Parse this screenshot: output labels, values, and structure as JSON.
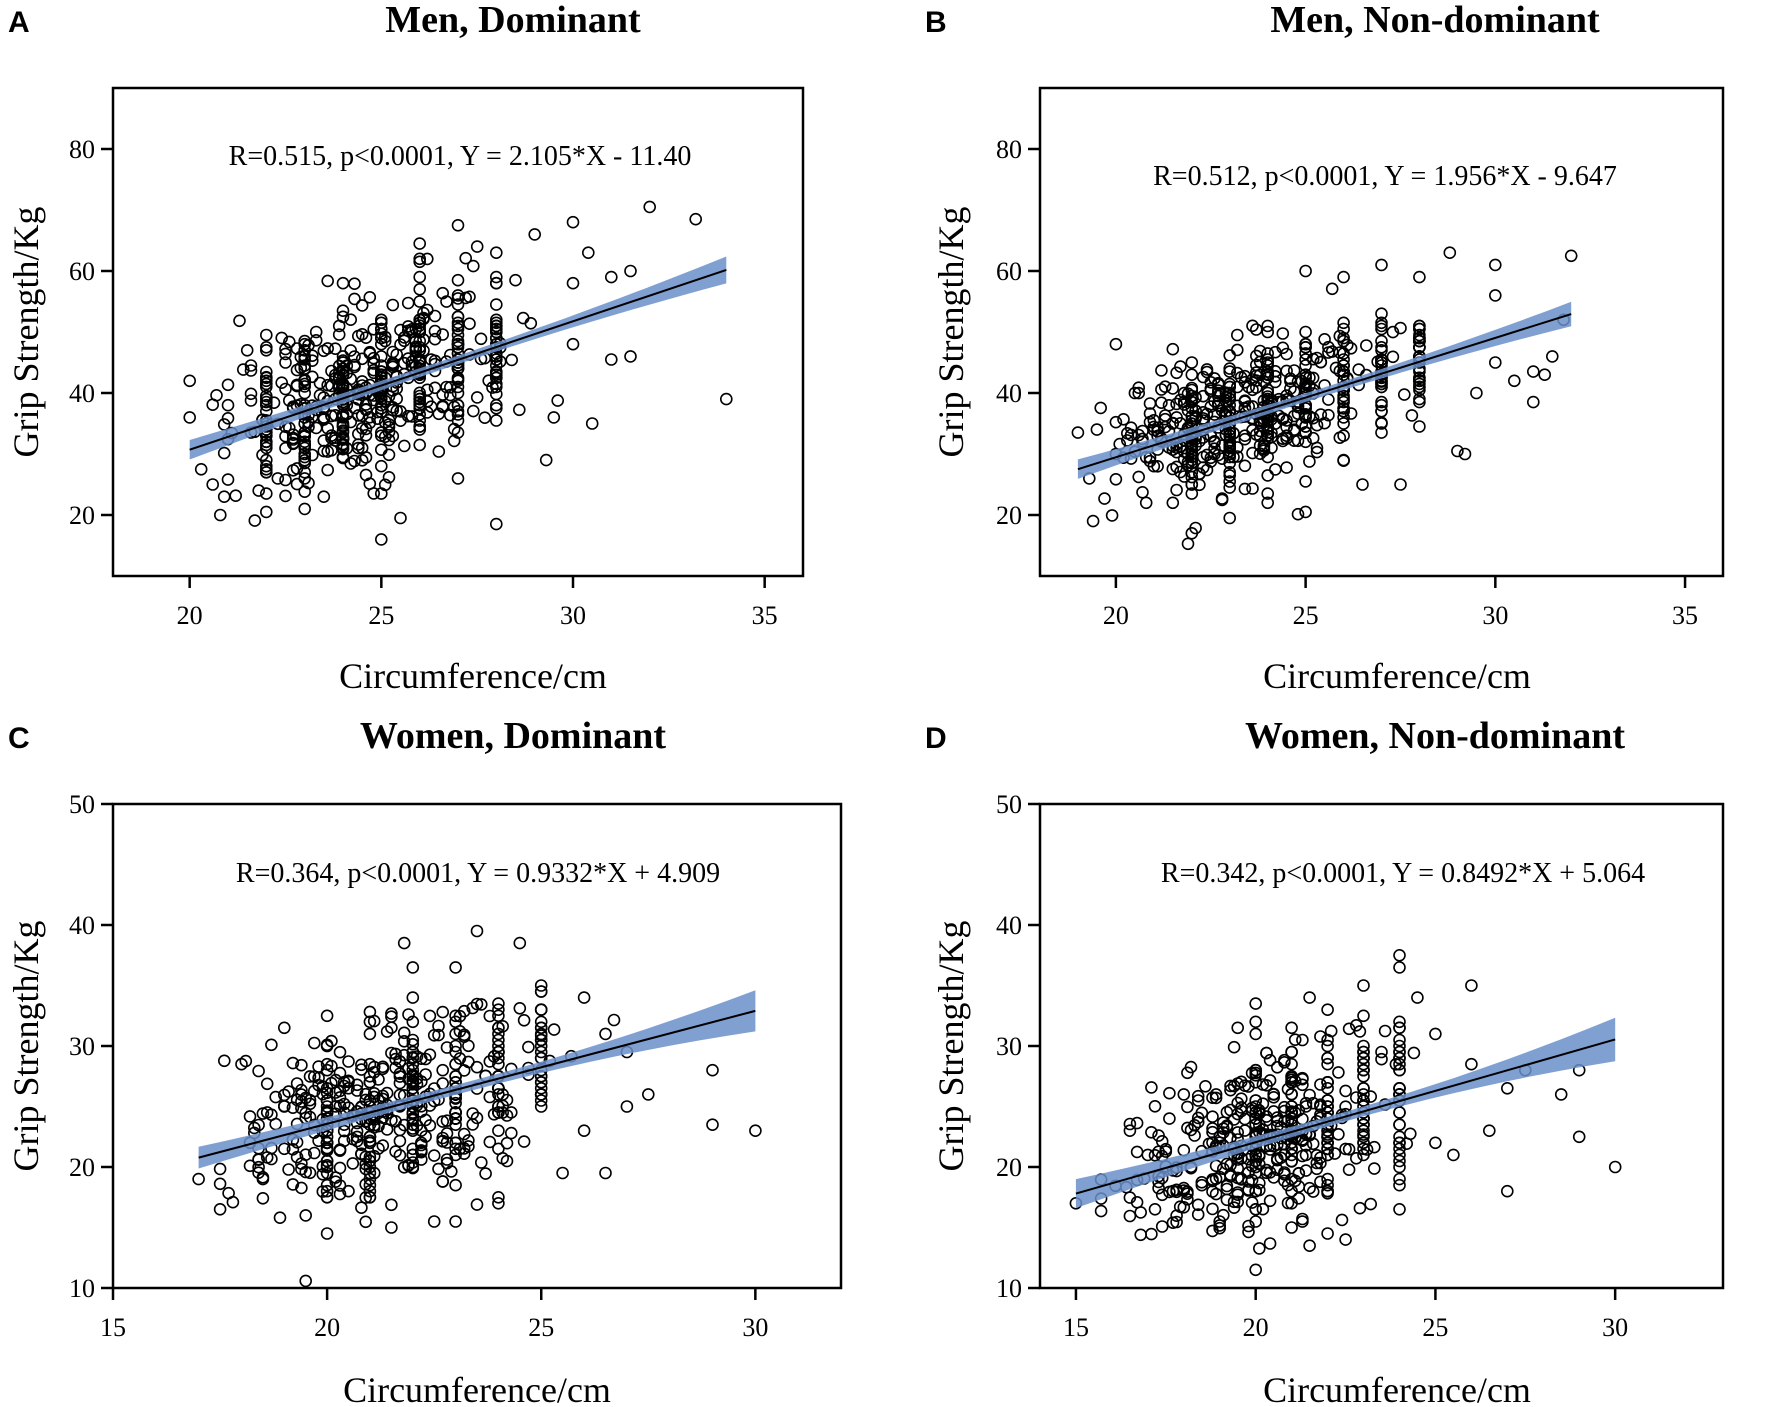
{
  "chart_data": [
    {
      "type": "scatter",
      "panel": "A",
      "title": "Men, Dominant",
      "xlabel": "Circumference/cm",
      "ylabel": "Grip Strength/Kg",
      "xlim": [
        18,
        36
      ],
      "ylim": [
        10,
        90
      ],
      "xticks": [
        20,
        25,
        30,
        35
      ],
      "yticks": [
        20,
        40,
        60,
        80
      ],
      "annotation": "R=0.515, p<0.0001, Y = 2.105*X - 11.40",
      "fit": {
        "slope": 2.105,
        "intercept": -11.4,
        "x_range": [
          20,
          34
        ],
        "ci_halfwidth": [
          1.6,
          0.7,
          2.2
        ]
      },
      "spread": 7.5,
      "points": [
        [
          20,
          42
        ],
        [
          20,
          36
        ],
        [
          20.3,
          27.5
        ],
        [
          20.6,
          25
        ],
        [
          20.8,
          20
        ],
        [
          20.9,
          23
        ],
        [
          21,
          38
        ],
        [
          21.5,
          47
        ],
        [
          21.8,
          24
        ],
        [
          22,
          23.5
        ],
        [
          22.5,
          45
        ],
        [
          23,
          21
        ],
        [
          23.5,
          23
        ],
        [
          24,
          58
        ],
        [
          25,
          16
        ],
        [
          25,
          23.5
        ],
        [
          25.5,
          19.5
        ],
        [
          26,
          62
        ],
        [
          27,
          67.5
        ],
        [
          27,
          26
        ],
        [
          27.5,
          64
        ],
        [
          28,
          18.5
        ],
        [
          28,
          63
        ],
        [
          28.5,
          58.5
        ],
        [
          29,
          66
        ],
        [
          29.3,
          29
        ],
        [
          29.5,
          36
        ],
        [
          30,
          68
        ],
        [
          30,
          58
        ],
        [
          30,
          48
        ],
        [
          30.4,
          63
        ],
        [
          30.5,
          35
        ],
        [
          31,
          45.5
        ],
        [
          31,
          59
        ],
        [
          31.5,
          60
        ],
        [
          31.5,
          46
        ],
        [
          32,
          70.5
        ],
        [
          33.2,
          68.5
        ],
        [
          34,
          39
        ]
      ],
      "vertical_stacks": [
        22,
        23,
        24,
        25,
        26,
        27,
        28
      ]
    },
    {
      "type": "scatter",
      "panel": "B",
      "title": "Men, Non-dominant",
      "xlabel": "Circumference/cm",
      "ylabel": "Grip Strength/Kg",
      "xlim": [
        18,
        36
      ],
      "ylim": [
        10,
        90
      ],
      "xticks": [
        20,
        25,
        30,
        35
      ],
      "yticks": [
        20,
        40,
        60,
        80
      ],
      "annotation": "R=0.512, p<0.0001, Y = 1.956*X - 9.647",
      "fit": {
        "slope": 1.956,
        "intercept": -9.647,
        "x_range": [
          19,
          32
        ],
        "ci_halfwidth": [
          1.6,
          0.7,
          2.0
        ]
      },
      "spread": 6.5,
      "points": [
        [
          19,
          33.5
        ],
        [
          19.3,
          26
        ],
        [
          19.4,
          19
        ],
        [
          20,
          48
        ],
        [
          20,
          30
        ],
        [
          20.5,
          40
        ],
        [
          20.8,
          22
        ],
        [
          21,
          28
        ],
        [
          21.5,
          22
        ],
        [
          22,
          45
        ],
        [
          23,
          19.5
        ],
        [
          24,
          22
        ],
        [
          24,
          50
        ],
        [
          25,
          60
        ],
        [
          25,
          20.5
        ],
        [
          26,
          59
        ],
        [
          26.5,
          25
        ],
        [
          27,
          61
        ],
        [
          27.5,
          25
        ],
        [
          28,
          59
        ],
        [
          28.8,
          63
        ],
        [
          29,
          30.5
        ],
        [
          29.2,
          30
        ],
        [
          29.5,
          40
        ],
        [
          30,
          61
        ],
        [
          30,
          56
        ],
        [
          30,
          45
        ],
        [
          30.5,
          42
        ],
        [
          31,
          43.5
        ],
        [
          31,
          38.5
        ],
        [
          31.3,
          43
        ],
        [
          31.5,
          46
        ],
        [
          31.8,
          52
        ],
        [
          32,
          62.5
        ]
      ],
      "vertical_stacks": [
        22,
        23,
        24,
        25,
        26,
        27,
        28
      ]
    },
    {
      "type": "scatter",
      "panel": "C",
      "title": "Women, Dominant",
      "xlabel": "Circumference/cm",
      "ylabel": "Grip Strength/Kg",
      "xlim": [
        15,
        32
      ],
      "ylim": [
        10,
        50
      ],
      "xticks": [
        15,
        20,
        25,
        30
      ],
      "yticks": [
        10,
        20,
        30,
        40,
        50
      ],
      "annotation": "R=0.364, p<0.0001, Y = 0.9332*X + 4.909",
      "fit": {
        "slope": 0.9332,
        "intercept": 4.909,
        "x_range": [
          17,
          30
        ],
        "ci_halfwidth": [
          0.9,
          0.4,
          1.7
        ]
      },
      "spread": 4.2,
      "points": [
        [
          17,
          19
        ],
        [
          17.5,
          16.5
        ],
        [
          18,
          28.5
        ],
        [
          18.2,
          22
        ],
        [
          18.5,
          19
        ],
        [
          19,
          31.5
        ],
        [
          19,
          25
        ],
        [
          19.5,
          16
        ],
        [
          20,
          32.5
        ],
        [
          20,
          14.5
        ],
        [
          20.5,
          18
        ],
        [
          21,
          31
        ],
        [
          21.5,
          15
        ],
        [
          21.8,
          38.5
        ],
        [
          22,
          36.5
        ],
        [
          22.5,
          15.5
        ],
        [
          23,
          36.5
        ],
        [
          23,
          15.5
        ],
        [
          23.5,
          39.5
        ],
        [
          24,
          17.5
        ],
        [
          24.5,
          38.5
        ],
        [
          25,
          35
        ],
        [
          25,
          33
        ],
        [
          25.5,
          19.5
        ],
        [
          26,
          34
        ],
        [
          26,
          23
        ],
        [
          26.5,
          31
        ],
        [
          26.5,
          19.5
        ],
        [
          27,
          29.5
        ],
        [
          27,
          25
        ],
        [
          27.5,
          26
        ],
        [
          29,
          28
        ],
        [
          29,
          23.5
        ],
        [
          30,
          23
        ]
      ],
      "vertical_stacks": [
        20,
        21,
        22,
        23,
        24,
        25
      ]
    },
    {
      "type": "scatter",
      "panel": "D",
      "title": "Women, Non-dominant",
      "xlabel": "Circumference/cm",
      "ylabel": "Grip Strength/Kg",
      "xlim": [
        14,
        33
      ],
      "ylim": [
        10,
        50
      ],
      "xticks": [
        15,
        20,
        25,
        30
      ],
      "yticks": [
        10,
        20,
        30,
        40,
        50
      ],
      "annotation": "R=0.342, p<0.0001, Y = 0.8492*X + 5.064",
      "fit": {
        "slope": 0.8492,
        "intercept": 5.064,
        "x_range": [
          15,
          30
        ],
        "ci_halfwidth": [
          1.2,
          0.4,
          1.8
        ]
      },
      "spread": 4.0,
      "points": [
        [
          15,
          17
        ],
        [
          16.5,
          23
        ],
        [
          17,
          21
        ],
        [
          17.2,
          16.5
        ],
        [
          18,
          26
        ],
        [
          18.5,
          18.5
        ],
        [
          19,
          15.5
        ],
        [
          19.5,
          31.5
        ],
        [
          20,
          11.5
        ],
        [
          20,
          32
        ],
        [
          21,
          15
        ],
        [
          21.5,
          34
        ],
        [
          21.5,
          13.5
        ],
        [
          22,
          33
        ],
        [
          22.5,
          14
        ],
        [
          23,
          35
        ],
        [
          23.5,
          29.5
        ],
        [
          24,
          37.5
        ],
        [
          24,
          36.5
        ],
        [
          24.5,
          34
        ],
        [
          25,
          31
        ],
        [
          25,
          22
        ],
        [
          25.5,
          21
        ],
        [
          26,
          35
        ],
        [
          26,
          28.5
        ],
        [
          26.5,
          23
        ],
        [
          27,
          26.5
        ],
        [
          27,
          18
        ],
        [
          27.5,
          28
        ],
        [
          28.5,
          26
        ],
        [
          29,
          28
        ],
        [
          29,
          22.5
        ],
        [
          30,
          20
        ]
      ],
      "vertical_stacks": [
        20,
        21,
        22,
        23,
        24
      ]
    }
  ]
}
